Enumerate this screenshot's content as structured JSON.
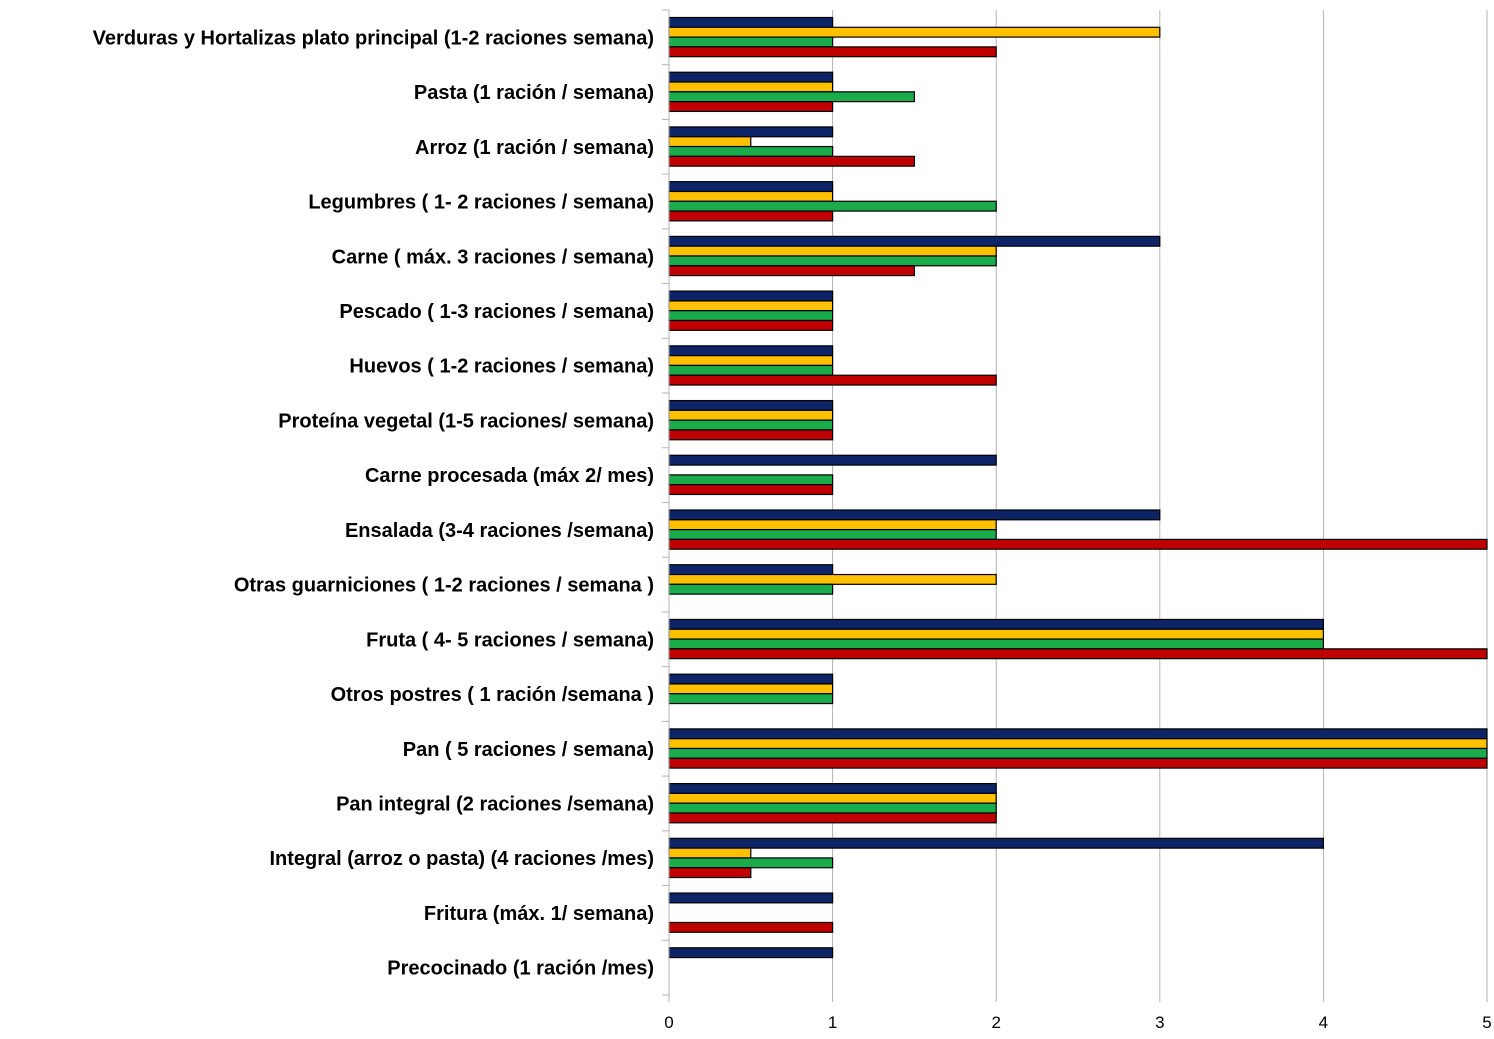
{
  "chart_data": {
    "type": "bar",
    "orientation": "horizontal",
    "title": "",
    "xlabel": "",
    "ylabel": "",
    "xlim": [
      0,
      5
    ],
    "x_ticks": [
      "0",
      "1",
      "2",
      "3",
      "4",
      "5"
    ],
    "grid": "vertical",
    "legend": "none",
    "categories": [
      "Verduras y Hortalizas plato principal (1-2 raciones semana)",
      "Pasta (1 ración / semana)",
      "Arroz (1 ración / semana)",
      "Legumbres (  1- 2 raciones / semana)",
      "Carne ( máx. 3 raciones / semana)",
      "Pescado ( 1-3 raciones / semana)",
      "Huevos ( 1-2 raciones / semana)",
      "Proteína vegetal (1-5 raciones/ semana)",
      "Carne procesada (máx 2/ mes)",
      "Ensalada (3-4 raciones /semana)",
      "Otras guarniciones ( 1-2 raciones / semana )",
      "Fruta ( 4- 5 raciones / semana)",
      "Otros postres ( 1 ración /semana )",
      "Pan ( 5 raciones / semana)",
      "Pan integral (2 raciones /semana)",
      "Integral (arroz o pasta) (4 raciones /mes)",
      "Fritura (máx. 1/ semana)",
      "Precocinado (1 ración /mes)"
    ],
    "series": [
      {
        "color": "#0d2466",
        "values": [
          1,
          1,
          1,
          1,
          3,
          1,
          1,
          1,
          2,
          3,
          1,
          4,
          1,
          5,
          2,
          4,
          1,
          1
        ]
      },
      {
        "color": "#ffc000",
        "values": [
          3,
          1,
          0.5,
          1,
          2,
          1,
          1,
          1,
          0,
          2,
          2,
          4,
          1,
          5,
          2,
          0.5,
          0,
          0
        ]
      },
      {
        "color": "#1aab4a",
        "values": [
          1,
          1.5,
          1,
          2,
          2,
          1,
          1,
          1,
          1,
          2,
          1,
          4,
          1,
          5,
          2,
          1,
          0,
          0
        ]
      },
      {
        "color": "#c00000",
        "values": [
          2,
          1,
          1.5,
          1,
          1.5,
          1,
          2,
          1,
          1,
          5,
          0,
          5,
          0,
          5,
          2,
          0.5,
          1,
          0
        ]
      }
    ]
  }
}
